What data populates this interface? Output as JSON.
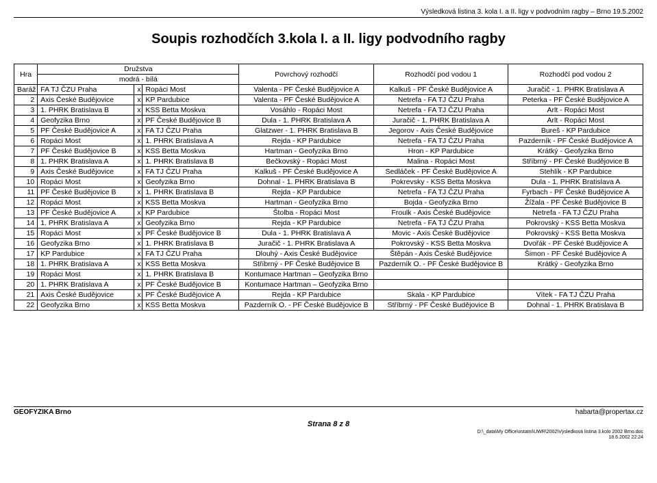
{
  "header": {
    "text": "Výsledková listina 3. kola I. a II. ligy v podvodním ragby – Brno 19.5.2002"
  },
  "title": "Soupis rozhodčích 3.kola I. a II. ligy podvodního ragby",
  "table": {
    "head": {
      "hra": "Hra",
      "druzstva": "Družstva",
      "druzstva_sub": "modrá - bílá",
      "povrch": "Povrchový rozhodčí",
      "pod1": "Rozhodčí pod vodou 1",
      "pod2": "Rozhodčí pod vodou 2"
    },
    "rows": [
      {
        "n": "Baráž",
        "t1": "FA TJ ČZU Praha",
        "x": "x",
        "t2": "Ropáci Most",
        "p": "Valenta - PF České Budějovice A",
        "v1": "Kalkuš - PF České Budějovice A",
        "v2": "Juračič - 1. PHRK Bratislava A"
      },
      {
        "n": "2",
        "t1": "Axis České Budějovice",
        "x": "x",
        "t2": "KP Pardubice",
        "p": "Valenta - PF České Budějovice A",
        "v1": "Netrefa - FA TJ ČZU Praha",
        "v2": "Peterka - PF České Budějovice A"
      },
      {
        "n": "3",
        "t1": "1. PHRK Bratislava B",
        "x": "x",
        "t2": "KSS Betta Moskva",
        "p": "Vosáhlo - Ropáci Most",
        "v1": "Netrefa - FA TJ ČZU Praha",
        "v2": "Arlt - Ropáci Most"
      },
      {
        "n": "4",
        "t1": "Geofyzika Brno",
        "x": "x",
        "t2": "PF České Budějovice B",
        "p": "Dula - 1. PHRK Bratislava A",
        "v1": "Juračič - 1. PHRK Bratislava A",
        "v2": "Arlt - Ropáci Most"
      },
      {
        "n": "5",
        "t1": "PF České Budějovice A",
        "x": "x",
        "t2": "FA TJ ČZU Praha",
        "p": "Glatzwer - 1. PHRK Bratislava B",
        "v1": "Jegorov - Axis České Budějovice",
        "v2": "Bureš - KP Pardubice"
      },
      {
        "n": "6",
        "t1": "Ropáci Most",
        "x": "x",
        "t2": "1. PHRK Bratislava A",
        "p": "Rejda - KP Pardubice",
        "v1": "Netrefa - FA TJ ČZU Praha",
        "v2": "Pazderník - PF České Budějovice A"
      },
      {
        "n": "7",
        "t1": "PF České Budějovice B",
        "x": "x",
        "t2": "KSS Betta Moskva",
        "p": "Hartman - Geofyzika Brno",
        "v1": "Hron - KP Pardubice",
        "v2": "Krátký - Geofyzika Brno"
      },
      {
        "n": "8",
        "t1": "1. PHRK Bratislava A",
        "x": "x",
        "t2": "1. PHRK Bratislava B",
        "p": "Bečkovský - Ropáci Most",
        "v1": "Malina - Ropáci Most",
        "v2": "Stříbrný - PF České Budějovice B"
      },
      {
        "n": "9",
        "t1": "Axis České Budějovice",
        "x": "x",
        "t2": "FA TJ ČZU Praha",
        "p": "Kalkuš - PF České Budějovice A",
        "v1": "Sedláček - PF České Budějovice A",
        "v2": "Stehlík - KP Pardubice"
      },
      {
        "n": "10",
        "t1": "Ropáci Most",
        "x": "x",
        "t2": "Geofyzika Brno",
        "p": "Dohnal - 1. PHRK Bratislava B",
        "v1": "Pokrevsky - KSS Betta Moskva",
        "v2": "Dula - 1. PHRK Bratislava A"
      },
      {
        "n": "11",
        "t1": "PF České Budějovice B",
        "x": "x",
        "t2": "1. PHRK Bratislava B",
        "p": "Rejda - KP Pardubice",
        "v1": "Netrefa - FA TJ ČZU Praha",
        "v2": "Fyrbach - PF České Budějovice A"
      },
      {
        "n": "12",
        "t1": "Ropáci Most",
        "x": "x",
        "t2": "KSS Betta Moskva",
        "p": "Hartman - Geofyzika Brno",
        "v1": "Bojda - Geofyzika Brno",
        "v2": "Žížala - PF České Budějovice B"
      },
      {
        "n": "13",
        "t1": "PF České Budějovice A",
        "x": "x",
        "t2": "KP Pardubice",
        "p": "Štolba - Ropáci Most",
        "v1": "Froulk - Axis České Budějovice",
        "v2": "Netrefa - FA TJ ČZU Praha"
      },
      {
        "n": "14",
        "t1": "1. PHRK Bratislava A",
        "x": "x",
        "t2": "Geofyzika Brno",
        "p": "Rejda - KP Pardubice",
        "v1": "Netrefa - FA TJ ČZU Praha",
        "v2": "Pokrovský - KSS Betta Moskva"
      },
      {
        "n": "15",
        "t1": "Ropáci Most",
        "x": "x",
        "t2": "PF České Budějovice B",
        "p": "Dula - 1. PHRK Bratislava A",
        "v1": "Movic - Axis České Budějovice",
        "v2": "Pokrovský - KSS Betta Moskva"
      },
      {
        "n": "16",
        "t1": "Geofyzika Brno",
        "x": "x",
        "t2": "1. PHRK Bratislava B",
        "p": "Juračič - 1. PHRK Bratislava A",
        "v1": "Pokrovský - KSS Betta Moskva",
        "v2": "Dvořák - PF České Budějovice A"
      },
      {
        "n": "17",
        "t1": "KP Pardubice",
        "x": "x",
        "t2": "FA TJ ČZU Praha",
        "p": "Dlouhý - Axis České Budějovice",
        "v1": "Štěpán - Axis České Budějovice",
        "v2": "Šimon - PF České Budějovice A"
      },
      {
        "n": "18",
        "t1": "1. PHRK Bratislava A",
        "x": "x",
        "t2": "KSS Betta Moskva",
        "p": "Stříbrný - PF České Budějovice B",
        "v1": "Pazderník O. - PF České Budějovice B",
        "v2": "Krátký - Geofyzika Brno"
      },
      {
        "n": "19",
        "t1": "Ropáci Most",
        "x": "x",
        "t2": "1. PHRK Bratislava B",
        "p": "Kontumace Hartman – Geofyzika Brno",
        "v1": "",
        "v2": ""
      },
      {
        "n": "20",
        "t1": "1. PHRK Bratislava A",
        "x": "x",
        "t2": "PF České Budějovice B",
        "p": "Kontumace Hartman – Geofyzika Brno",
        "v1": "",
        "v2": ""
      },
      {
        "n": "21",
        "t1": "Axis České Budějovice",
        "x": "x",
        "t2": "PF České Budějovice A",
        "p": "Rejda - KP Pardubice",
        "v1": "Skala - KP Pardubice",
        "v2": "Vítek - FA TJ ČZU Praha"
      },
      {
        "n": "22",
        "t1": "Geofyzika Brno",
        "x": "x",
        "t2": "KSS Betta Moskva",
        "p": "Pazderník O. - PF České Budějovice B",
        "v1": "Stříbrný - PF České Budějovice B",
        "v2": "Dohnal - 1. PHRK Bratislava B"
      }
    ]
  },
  "footer": {
    "left": "GEOFYZIKA Brno",
    "right": "habarta@propertax.cz",
    "center": "Strana 8 z 8",
    "path": "D:\\_data\\My Office\\ostatni\\UWR\\2002\\Výsledková listina 3.kolo 2002 Brno.doc",
    "ts": "18.6.2002 22:24"
  }
}
